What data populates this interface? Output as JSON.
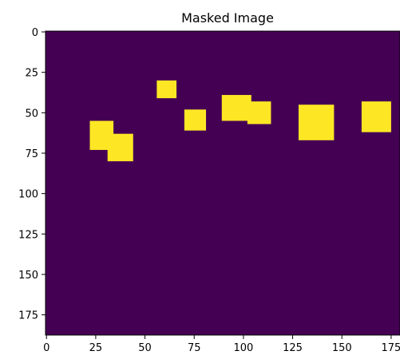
{
  "chart_data": {
    "type": "heatmap",
    "title": "Masked Image",
    "xlabel": "",
    "ylabel": "",
    "xlim": [
      -0.5,
      179.5
    ],
    "ylim": [
      187.5,
      -0.5
    ],
    "x_ticks": [
      0,
      25,
      50,
      75,
      100,
      125,
      150,
      175
    ],
    "x_tick_labels": [
      "0",
      "25",
      "50",
      "75",
      "100",
      "125",
      "150",
      "175"
    ],
    "y_ticks": [
      0,
      25,
      50,
      75,
      100,
      125,
      150,
      175
    ],
    "y_tick_labels": [
      "0",
      "25",
      "50",
      "75",
      "100",
      "125",
      "150",
      "175"
    ],
    "grid": false,
    "colormap": "viridis",
    "background_value": 0,
    "mask_value": 1,
    "colors": {
      "background": "#440154",
      "mask": "#fde725"
    },
    "masked_regions": [
      {
        "x0": 22,
        "x1": 34,
        "y0": 55,
        "y1": 73
      },
      {
        "x0": 31,
        "x1": 44,
        "y0": 63,
        "y1": 80
      },
      {
        "x0": 56,
        "x1": 66,
        "y0": 30,
        "y1": 41
      },
      {
        "x0": 70,
        "x1": 81,
        "y0": 48,
        "y1": 61
      },
      {
        "x0": 89,
        "x1": 104,
        "y0": 39,
        "y1": 55
      },
      {
        "x0": 102,
        "x1": 114,
        "y0": 43,
        "y1": 57
      },
      {
        "x0": 128,
        "x1": 146,
        "y0": 45,
        "y1": 67
      },
      {
        "x0": 160,
        "x1": 175,
        "y0": 43,
        "y1": 62
      }
    ]
  }
}
